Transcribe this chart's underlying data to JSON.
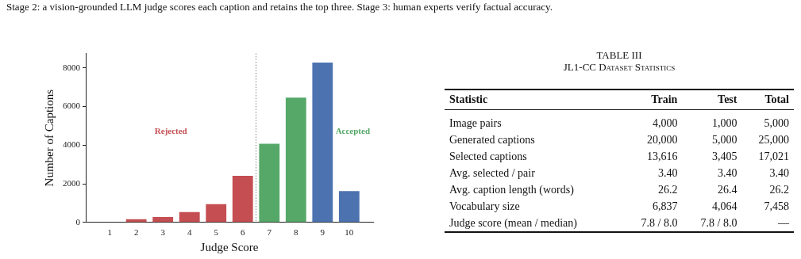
{
  "chart_data": [
    {
      "type": "bar",
      "xlabel": "Judge Score",
      "ylabel": "Number of Captions",
      "x": [
        1,
        2,
        3,
        4,
        5,
        6,
        7,
        8,
        9,
        10
      ],
      "values": [
        0,
        170,
        280,
        540,
        950,
        2410,
        4080,
        6470,
        8280,
        1620
      ],
      "colors": [
        "#c44e52",
        "#c44e52",
        "#c44e52",
        "#c44e52",
        "#c44e52",
        "#c44e52",
        "#55a868",
        "#55a868",
        "#4c72b0",
        "#4c72b0"
      ],
      "xlim": [
        0.1,
        10.9
      ],
      "xticks": [
        1,
        2,
        3,
        4,
        5,
        6,
        7,
        8,
        9,
        10
      ],
      "ylim": [
        0,
        8750
      ],
      "yticks": [
        0,
        2000,
        4000,
        6000,
        8000
      ],
      "grid": false,
      "legend": false,
      "ref_lines": [
        {
          "axis": "x",
          "value": 6.5,
          "color": "#999999",
          "line_style": "dotted"
        }
      ],
      "annotations": [
        "Stage 2: a vision-grounded LLM judge scores each caption and retains the top three. Stage 3: human experts verify factual accuracy.",
        "Rejected",
        "Accepted"
      ]
    },
    {
      "type": "other",
      "title": "TABLE III",
      "subtitle": "JL1-CC Dataset Statistics",
      "categories": [
        "Statistic",
        "Train",
        "Test",
        "Total"
      ],
      "y_categories": [
        "Image pairs",
        "Generated captions",
        "Selected captions",
        "Avg. selected / pair",
        "Avg. caption length (words)",
        "Vocabulary size",
        "Judge score (mean / median)"
      ],
      "cell_labels": [
        [
          "4,000",
          "1,000",
          "5,000"
        ],
        [
          "20,000",
          "5,000",
          "25,000"
        ],
        [
          "13,616",
          "3,405",
          "17,021"
        ],
        [
          "3.40",
          "3.40",
          "3.40"
        ],
        [
          "26.2",
          "26.4",
          "26.2"
        ],
        [
          "6,837",
          "4,064",
          "7,458"
        ],
        [
          "7.8 / 8.0",
          "7.8 / 8.0",
          "—"
        ]
      ]
    }
  ]
}
